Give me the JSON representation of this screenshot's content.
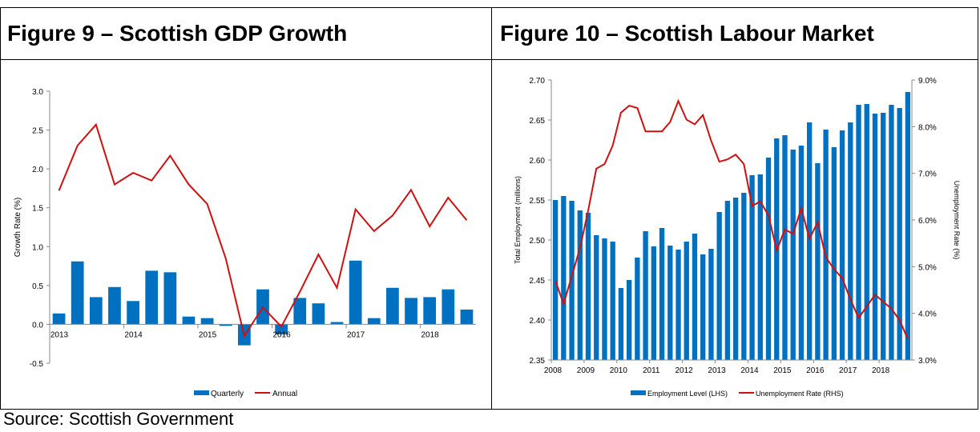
{
  "figure9": {
    "title": "Figure 9 – Scottish GDP Growth"
  },
  "figure10": {
    "title": "Figure 10 – Scottish Labour Market"
  },
  "source": "Source: Scottish Government",
  "colors": {
    "bar": "#0070c0",
    "line": "#d01010"
  },
  "chart_data": [
    {
      "type": "bar",
      "title": "Figure 9 – Scottish GDP Growth",
      "xlabel": "",
      "ylabel": "Growth Rate (%)",
      "ylim": [
        -0.5,
        3.0
      ],
      "yticks": [
        "3.0",
        "2.5",
        "2.0",
        "1.5",
        "1.0",
        "0.5",
        "0.0",
        "-0.5"
      ],
      "xtick_labels": [
        "2013",
        "2014",
        "2015",
        "2016",
        "2017",
        "2018"
      ],
      "grid": false,
      "legend": "bottom",
      "series": [
        {
          "name": "Quarterly",
          "type": "bar",
          "values": [
            0.14,
            0.81,
            0.35,
            0.48,
            0.3,
            0.69,
            0.67,
            0.1,
            0.08,
            -0.02,
            -0.27,
            0.45,
            -0.13,
            0.34,
            0.27,
            0.03,
            0.82,
            0.08,
            0.47,
            0.34,
            0.35,
            0.45,
            0.19
          ]
        },
        {
          "name": "Annual",
          "type": "line",
          "values": [
            1.72,
            2.3,
            2.57,
            1.8,
            1.95,
            1.85,
            2.17,
            1.8,
            1.55,
            0.85,
            -0.15,
            0.22,
            -0.03,
            0.42,
            0.9,
            0.47,
            1.48,
            1.2,
            1.4,
            1.73,
            1.26,
            1.63,
            1.34
          ]
        }
      ]
    },
    {
      "type": "bar",
      "title": "Figure 10 – Scottish Labour Market",
      "xlabel": "",
      "ylabel": "Total Employment (millions)",
      "ylabel_right": "Unemployment Rate (%)",
      "ylim": [
        2.35,
        2.7
      ],
      "ylim_right": [
        3.0,
        9.0
      ],
      "yticks": [
        "2.70",
        "2.65",
        "2.60",
        "2.55",
        "2.50",
        "2.45",
        "2.40",
        "2.35"
      ],
      "yticks_right": [
        "9.0%",
        "8.0%",
        "7.0%",
        "6.0%",
        "5.0%",
        "4.0%",
        "3.0%"
      ],
      "xtick_labels": [
        "2008",
        "2009",
        "2010",
        "2011",
        "2012",
        "2013",
        "2014",
        "2015",
        "2016",
        "2017",
        "2018"
      ],
      "grid": false,
      "legend": "bottom",
      "series": [
        {
          "name": "Employment Level (LHS)",
          "type": "bar",
          "axis": "left",
          "values": [
            2.55,
            2.555,
            2.549,
            2.537,
            2.534,
            2.506,
            2.502,
            2.498,
            2.44,
            2.45,
            2.478,
            2.511,
            2.492,
            2.515,
            2.493,
            2.488,
            2.498,
            2.508,
            2.482,
            2.489,
            2.535,
            2.549,
            2.553,
            2.559,
            2.581,
            2.582,
            2.603,
            2.627,
            2.631,
            2.613,
            2.618,
            2.647,
            2.596,
            2.638,
            2.616,
            2.637,
            2.647,
            2.669,
            2.67,
            2.658,
            2.659,
            2.669,
            2.665,
            2.685
          ]
        },
        {
          "name": "Unemployment Rate (RHS)",
          "type": "line",
          "axis": "right",
          "values": [
            4.7,
            4.2,
            4.8,
            5.4,
            6.2,
            7.1,
            7.2,
            7.6,
            8.3,
            8.45,
            8.4,
            7.9,
            7.9,
            7.9,
            8.1,
            8.55,
            8.15,
            8.05,
            8.25,
            7.7,
            7.25,
            7.3,
            7.4,
            7.2,
            6.3,
            6.4,
            6.1,
            5.35,
            5.8,
            5.7,
            6.25,
            5.6,
            5.95,
            5.2,
            4.95,
            4.75,
            4.3,
            3.9,
            4.15,
            4.4,
            4.25,
            4.1,
            3.85,
            3.45
          ]
        }
      ]
    }
  ]
}
